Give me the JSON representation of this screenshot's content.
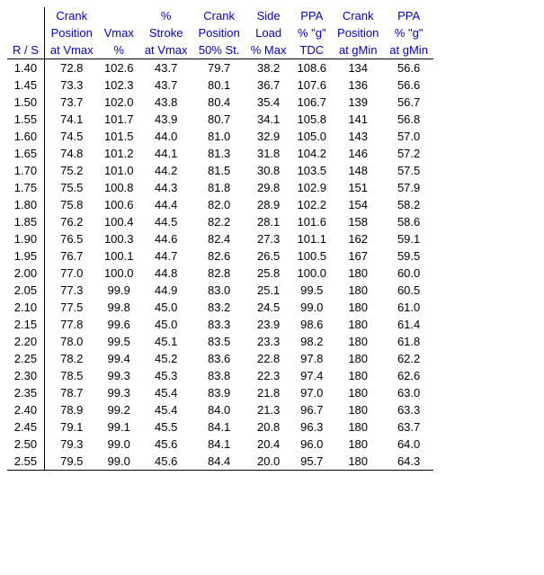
{
  "table": {
    "type": "table",
    "background_color": "#ffffff",
    "header_color": "#0000cc",
    "body_color": "#000000",
    "border_color": "#000000",
    "font_size_pt": 10,
    "columns": [
      {
        "h1": "",
        "h2": "",
        "h3": "R / S",
        "align": "center"
      },
      {
        "h1": "Crank",
        "h2": "Position",
        "h3": "at Vmax",
        "align": "center"
      },
      {
        "h1": "",
        "h2": "Vmax",
        "h3": "%",
        "align": "center"
      },
      {
        "h1": "%",
        "h2": "Stroke",
        "h3": "at Vmax",
        "align": "center"
      },
      {
        "h1": "Crank",
        "h2": "Position",
        "h3": "50% St.",
        "align": "center"
      },
      {
        "h1": "Side",
        "h2": "Load",
        "h3": "% Max",
        "align": "center"
      },
      {
        "h1": "PPA",
        "h2": "% \"g\"",
        "h3": "TDC",
        "align": "center"
      },
      {
        "h1": "Crank",
        "h2": "Position",
        "h3": "at gMin",
        "align": "center"
      },
      {
        "h1": "PPA",
        "h2": "% \"g\"",
        "h3": "at gMin",
        "align": "center"
      }
    ],
    "rows": [
      [
        "1.40",
        "72.8",
        "102.6",
        "43.7",
        "79.7",
        "38.2",
        "108.6",
        "134",
        "56.6"
      ],
      [
        "1.45",
        "73.3",
        "102.3",
        "43.7",
        "80.1",
        "36.7",
        "107.6",
        "136",
        "56.6"
      ],
      [
        "1.50",
        "73.7",
        "102.0",
        "43.8",
        "80.4",
        "35.4",
        "106.7",
        "139",
        "56.7"
      ],
      [
        "1.55",
        "74.1",
        "101.7",
        "43.9",
        "80.7",
        "34.1",
        "105.8",
        "141",
        "56.8"
      ],
      [
        "1.60",
        "74.5",
        "101.5",
        "44.0",
        "81.0",
        "32.9",
        "105.0",
        "143",
        "57.0"
      ],
      [
        "1.65",
        "74.8",
        "101.2",
        "44.1",
        "81.3",
        "31.8",
        "104.2",
        "146",
        "57.2"
      ],
      [
        "1.70",
        "75.2",
        "101.0",
        "44.2",
        "81.5",
        "30.8",
        "103.5",
        "148",
        "57.5"
      ],
      [
        "1.75",
        "75.5",
        "100.8",
        "44.3",
        "81.8",
        "29.8",
        "102.9",
        "151",
        "57.9"
      ],
      [
        "1.80",
        "75.8",
        "100.6",
        "44.4",
        "82.0",
        "28.9",
        "102.2",
        "154",
        "58.2"
      ],
      [
        "1.85",
        "76.2",
        "100.4",
        "44.5",
        "82.2",
        "28.1",
        "101.6",
        "158",
        "58.6"
      ],
      [
        "1.90",
        "76.5",
        "100.3",
        "44.6",
        "82.4",
        "27.3",
        "101.1",
        "162",
        "59.1"
      ],
      [
        "1.95",
        "76.7",
        "100.1",
        "44.7",
        "82.6",
        "26.5",
        "100.5",
        "167",
        "59.5"
      ],
      [
        "2.00",
        "77.0",
        "100.0",
        "44.8",
        "82.8",
        "25.8",
        "100.0",
        "180",
        "60.0"
      ],
      [
        "2.05",
        "77.3",
        "99.9",
        "44.9",
        "83.0",
        "25.1",
        "99.5",
        "180",
        "60.5"
      ],
      [
        "2.10",
        "77.5",
        "99.8",
        "45.0",
        "83.2",
        "24.5",
        "99.0",
        "180",
        "61.0"
      ],
      [
        "2.15",
        "77.8",
        "99.6",
        "45.0",
        "83.3",
        "23.9",
        "98.6",
        "180",
        "61.4"
      ],
      [
        "2.20",
        "78.0",
        "99.5",
        "45.1",
        "83.5",
        "23.3",
        "98.2",
        "180",
        "61.8"
      ],
      [
        "2.25",
        "78.2",
        "99.4",
        "45.2",
        "83.6",
        "22.8",
        "97.8",
        "180",
        "62.2"
      ],
      [
        "2.30",
        "78.5",
        "99.3",
        "45.3",
        "83.8",
        "22.3",
        "97.4",
        "180",
        "62.6"
      ],
      [
        "2.35",
        "78.7",
        "99.3",
        "45.4",
        "83.9",
        "21.8",
        "97.0",
        "180",
        "63.0"
      ],
      [
        "2.40",
        "78.9",
        "99.2",
        "45.4",
        "84.0",
        "21.3",
        "96.7",
        "180",
        "63.3"
      ],
      [
        "2.45",
        "79.1",
        "99.1",
        "45.5",
        "84.1",
        "20.8",
        "96.3",
        "180",
        "63.7"
      ],
      [
        "2.50",
        "79.3",
        "99.0",
        "45.6",
        "84.1",
        "20.4",
        "96.0",
        "180",
        "64.0"
      ],
      [
        "2.55",
        "79.5",
        "99.0",
        "45.6",
        "84.4",
        "20.0",
        "95.7",
        "180",
        "64.3"
      ]
    ]
  }
}
